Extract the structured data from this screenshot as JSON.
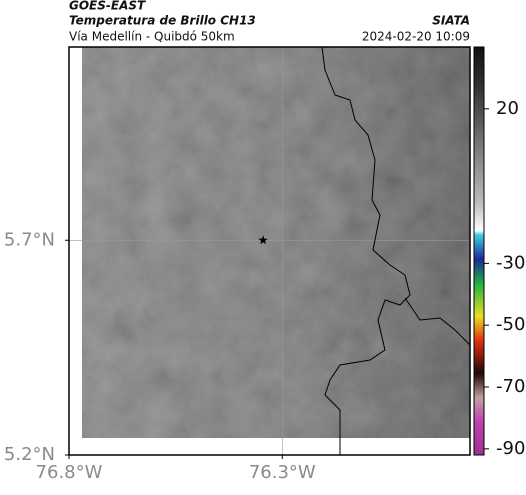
{
  "header": {
    "satellite": "GOES-EAST",
    "title": "Temperatura de Brillo CH13",
    "subtitle": "Vía Medellín - Quibdó 50km",
    "source": "SIATA",
    "datetime": "2024-02-20 10:09"
  },
  "map": {
    "xlim": [
      -76.8,
      -75.86
    ],
    "ylim": [
      5.2,
      6.15
    ],
    "xticks": [
      {
        "value": -76.8,
        "label": "76.8°W"
      },
      {
        "value": -76.3,
        "label": "76.3°W"
      }
    ],
    "yticks": [
      {
        "value": 5.2,
        "label": "5.2°N"
      },
      {
        "value": 5.7,
        "label": "5.7°N"
      }
    ],
    "marker": {
      "lon": -76.345,
      "lat": 5.7
    }
  },
  "colorbar": {
    "clim": [
      -92,
      40
    ],
    "ticks": [
      20,
      -30,
      -50,
      -70,
      -90
    ]
  }
}
